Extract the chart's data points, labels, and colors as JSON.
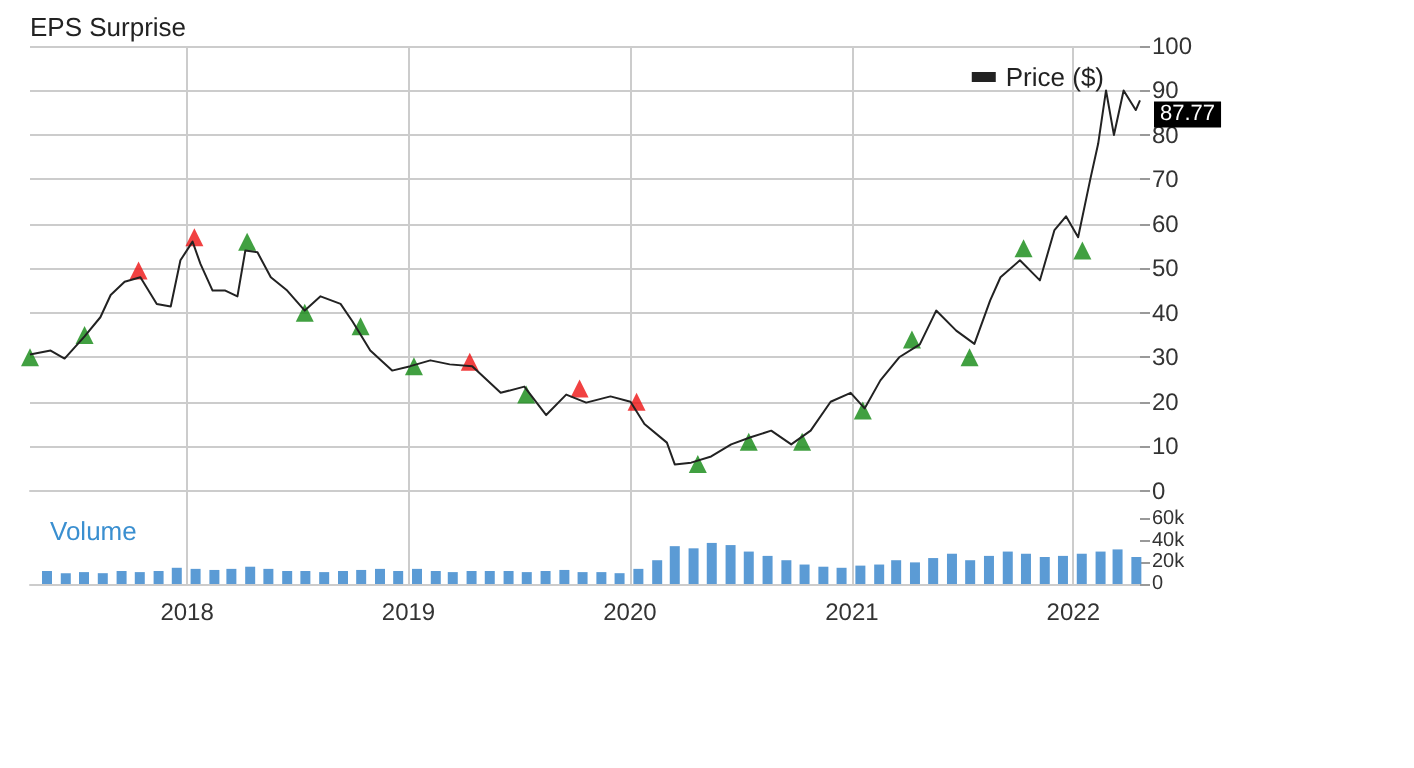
{
  "chart_data": [
    {
      "type": "line",
      "title": "EPS Surprise",
      "legend": "top right",
      "grid": true,
      "tick_labels": "y",
      "xlim": [
        "2017-04-17",
        "2022-04-21"
      ],
      "xticks": [
        {
          "value": "2018-01-01",
          "label": null
        },
        {
          "value": "2019-01-01",
          "label": null
        },
        {
          "value": "2020-01-01",
          "label": null
        },
        {
          "value": "2021-01-01",
          "label": null
        },
        {
          "value": "2022-01-01",
          "label": null
        }
      ],
      "ylim": [
        -3,
        100
      ],
      "yticks": [
        0,
        10,
        20,
        30,
        40,
        50,
        60,
        70,
        80,
        90,
        100
      ],
      "series": [
        {
          "name": "Price ($)",
          "color": "#222222",
          "marker": "none",
          "x": [
            "2017-04-17",
            "2017-05-21",
            "2017-06-13",
            "2017-07-16",
            "2017-08-11",
            "2017-08-28",
            "2017-09-20",
            "2017-10-16",
            "2017-11-12",
            "2017-12-05",
            "2017-12-21",
            "2018-01-10",
            "2018-01-23",
            "2018-02-12",
            "2018-03-05",
            "2018-03-25",
            "2018-04-07",
            "2018-04-27",
            "2018-05-19",
            "2018-06-15",
            "2018-07-14",
            "2018-08-09",
            "2018-09-11",
            "2018-10-01",
            "2018-10-30",
            "2018-12-05",
            "2019-01-04",
            "2019-02-06",
            "2019-03-10",
            "2019-04-16",
            "2019-06-02",
            "2019-07-11",
            "2019-08-16",
            "2019-09-18",
            "2019-10-21",
            "2019-11-30",
            "2020-01-02",
            "2020-01-25",
            "2020-03-02",
            "2020-03-15",
            "2020-04-11",
            "2020-05-14",
            "2020-06-16",
            "2020-07-18",
            "2020-08-21",
            "2020-09-23",
            "2020-10-25",
            "2020-11-27",
            "2020-12-30",
            "2021-01-22",
            "2021-02-17",
            "2021-03-20",
            "2021-04-23",
            "2021-05-20",
            "2021-06-22",
            "2021-07-22",
            "2021-08-17",
            "2021-09-03",
            "2021-10-05",
            "2021-11-07",
            "2021-12-01",
            "2021-12-20",
            "2022-01-09",
            "2022-01-29",
            "2022-02-11",
            "2022-02-24",
            "2022-03-09",
            "2022-03-25",
            "2022-04-14",
            "2022-04-21"
          ],
          "values": [
            30.6,
            31.5,
            29.7,
            34.7,
            39,
            44,
            47,
            48,
            42,
            41.4,
            51.8,
            56,
            51,
            45,
            45,
            43.7,
            54,
            53.6,
            48,
            45,
            40.5,
            43.7,
            42,
            38,
            31.5,
            27,
            28,
            29.3,
            28.4,
            28,
            22,
            23.4,
            17,
            21.6,
            19.8,
            21.2,
            20,
            15,
            10.8,
            5.9,
            6.3,
            7.7,
            10.4,
            12,
            13.5,
            10.4,
            13.5,
            20,
            22,
            18.5,
            24.8,
            30,
            32.9,
            40.5,
            36,
            33,
            42.8,
            48,
            51.8,
            47.3,
            58.6,
            61.7,
            57,
            70,
            78,
            90,
            80,
            90,
            85.6,
            87.77
          ],
          "value_labels": [
            null,
            null,
            null,
            null,
            null,
            null,
            null,
            null,
            null,
            null,
            null,
            null,
            null,
            null,
            null,
            null,
            null,
            null,
            null,
            null,
            null,
            null,
            null,
            null,
            null,
            null,
            null,
            null,
            null,
            null,
            null,
            null,
            null,
            null,
            null,
            null,
            null,
            null,
            null,
            null,
            null,
            null,
            null,
            null,
            null,
            null,
            null,
            null,
            null,
            null,
            null,
            null,
            null,
            null,
            null,
            null,
            null,
            null,
            null,
            null,
            null,
            null,
            null,
            null,
            null,
            null,
            null,
            null,
            null,
            "87.77"
          ]
        },
        {
          "type": "scatter",
          "color": "#118811",
          "marker": "triangle",
          "x": [
            "2017-04-17",
            "2017-07-16",
            "2018-04-10",
            "2018-07-14",
            "2018-10-14",
            "2019-01-10",
            "2019-07-14",
            "2020-04-22",
            "2020-07-15",
            "2020-10-11",
            "2021-01-19",
            "2021-04-10",
            "2021-07-14",
            "2021-10-11",
            "2022-01-16"
          ],
          "values": [
            30,
            35,
            56,
            40,
            37,
            28,
            21.6,
            6,
            11,
            11,
            18,
            34,
            30,
            54.5,
            54
          ]
        },
        {
          "type": "scatter",
          "color": "#ee1111",
          "marker": "triangle",
          "x": [
            "2017-10-13",
            "2018-01-13",
            "2019-04-12",
            "2019-10-10",
            "2020-01-12"
          ],
          "values": [
            49.5,
            57,
            29,
            23,
            20
          ]
        }
      ]
    },
    {
      "type": "bar",
      "title": "Volume",
      "grid": "x",
      "xlim": [
        "2017-04-17",
        "2022-04-21"
      ],
      "xticks": [
        {
          "value": "2018-01-01",
          "label": "2018"
        },
        {
          "value": "2019-01-01",
          "label": "2019"
        },
        {
          "value": "2020-01-01",
          "label": "2020"
        },
        {
          "value": "2021-01-01",
          "label": "2021"
        },
        {
          "value": "2022-01-01",
          "label": "2022"
        }
      ],
      "ylim": [
        0,
        74000
      ],
      "yticks": [
        0,
        {
          "value": 20000,
          "label": "20k"
        },
        {
          "value": 40000,
          "label": "40k"
        },
        {
          "value": 60000,
          "label": "60k"
        }
      ],
      "series": [
        {
          "color": "#5b9bd5",
          "x": [
            "2017-05-15",
            "2017-06-15",
            "2017-07-15",
            "2017-08-15",
            "2017-09-15",
            "2017-10-15",
            "2017-11-15",
            "2017-12-15",
            "2018-01-15",
            "2018-02-15",
            "2018-03-15",
            "2018-04-15",
            "2018-05-15",
            "2018-06-15",
            "2018-07-15",
            "2018-08-15",
            "2018-09-15",
            "2018-10-15",
            "2018-11-15",
            "2018-12-15",
            "2019-01-15",
            "2019-02-15",
            "2019-03-15",
            "2019-04-15",
            "2019-05-15",
            "2019-06-15",
            "2019-07-15",
            "2019-08-15",
            "2019-09-15",
            "2019-10-15",
            "2019-11-15",
            "2019-12-15",
            "2020-01-15",
            "2020-02-15",
            "2020-03-15",
            "2020-04-15",
            "2020-05-15",
            "2020-06-15",
            "2020-07-15",
            "2020-08-15",
            "2020-09-15",
            "2020-10-15",
            "2020-11-15",
            "2020-12-15",
            "2021-01-15",
            "2021-02-15",
            "2021-03-15",
            "2021-04-15",
            "2021-05-15",
            "2021-06-15",
            "2021-07-15",
            "2021-08-15",
            "2021-09-15",
            "2021-10-15",
            "2021-11-15",
            "2021-12-15",
            "2022-01-15",
            "2022-02-15",
            "2022-03-15",
            "2022-04-15"
          ],
          "values": [
            12000,
            10000,
            11000,
            10000,
            12000,
            11000,
            12000,
            15000,
            14000,
            13000,
            14000,
            16000,
            14000,
            12000,
            12000,
            11000,
            12000,
            13000,
            14000,
            12000,
            14000,
            12000,
            11000,
            12000,
            12000,
            12000,
            11000,
            12000,
            13000,
            11000,
            11000,
            10000,
            14000,
            22000,
            35000,
            33000,
            38000,
            36000,
            30000,
            26000,
            22000,
            18000,
            16000,
            15000,
            17000,
            18000,
            22000,
            20000,
            24000,
            28000,
            22000,
            26000,
            30000,
            28000,
            25000,
            26000,
            28000,
            30000,
            32000,
            25000
          ]
        }
      ]
    }
  ]
}
